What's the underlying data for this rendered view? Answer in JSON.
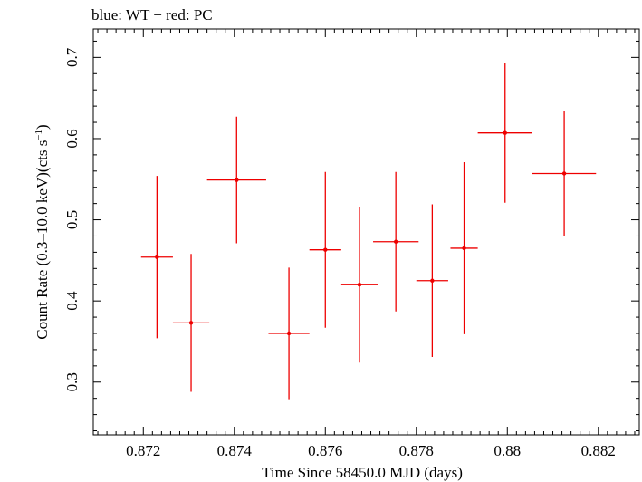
{
  "chart_data": {
    "type": "scatter",
    "title": "blue: WT − red: PC",
    "xlabel": "Time Since 58450.0 MJD (days)",
    "ylabel_main": "Count Rate (0.3–10.0 keV)(cts s",
    "ylabel_sup": "−1",
    "ylabel_close": ")",
    "xlim": [
      0.8709,
      0.8829
    ],
    "ylim": [
      0.235,
      0.735
    ],
    "x_ticks": [
      0.872,
      0.874,
      0.876,
      0.878,
      0.88,
      0.882
    ],
    "x_tick_labels": [
      "0.872",
      "0.874",
      "0.876",
      "0.878",
      "0.88",
      "0.882"
    ],
    "y_ticks": [
      0.3,
      0.4,
      0.5,
      0.6,
      0.7
    ],
    "y_tick_labels": [
      "0.3",
      "0.4",
      "0.5",
      "0.6",
      "0.7"
    ],
    "grid": false,
    "series": [
      {
        "color": "#ee0000",
        "points": [
          {
            "x": 0.8723,
            "xerr": 0.00035,
            "y": 0.454,
            "yerr": 0.1
          },
          {
            "x": 0.87305,
            "xerr": 0.0004,
            "y": 0.373,
            "yerr": 0.085
          },
          {
            "x": 0.87405,
            "xerr": 0.00065,
            "y": 0.549,
            "yerr": 0.078
          },
          {
            "x": 0.8752,
            "xerr": 0.00045,
            "y": 0.36,
            "yerr": 0.081
          },
          {
            "x": 0.876,
            "xerr": 0.00035,
            "y": 0.463,
            "yerr": 0.096
          },
          {
            "x": 0.87675,
            "xerr": 0.0004,
            "y": 0.42,
            "yerr": 0.096
          },
          {
            "x": 0.87755,
            "xerr": 0.0005,
            "y": 0.473,
            "yerr": 0.086
          },
          {
            "x": 0.87835,
            "xerr": 0.00035,
            "y": 0.425,
            "yerr": 0.094
          },
          {
            "x": 0.87905,
            "xerr": 0.0003,
            "y": 0.465,
            "yerr": 0.106
          },
          {
            "x": 0.87995,
            "xerr": 0.0006,
            "y": 0.607,
            "yerr": 0.086
          },
          {
            "x": 0.88125,
            "xerr": 0.0007,
            "y": 0.557,
            "yerr": 0.077
          }
        ]
      }
    ]
  }
}
